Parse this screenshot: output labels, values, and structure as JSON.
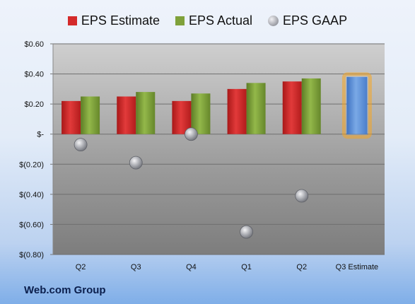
{
  "chart_data": {
    "type": "bar",
    "title": "",
    "xlabel": "",
    "ylabel": "",
    "categories": [
      "Q2",
      "Q3",
      "Q4",
      "Q1",
      "Q2",
      "Q3 Estimate"
    ],
    "ylim": [
      -0.8,
      0.6
    ],
    "yticks": [
      0.6,
      0.4,
      0.2,
      0,
      -0.2,
      -0.4,
      -0.6,
      -0.8
    ],
    "ytick_labels": [
      "$0.60",
      "$0.40",
      "$0.20",
      "$-",
      "$(0.20)",
      "$(0.40)",
      "$(0.60)",
      "$(0.80)"
    ],
    "grid": true,
    "legend_position": "top-center",
    "series": [
      {
        "name": "EPS Estimate",
        "kind": "bar",
        "color": "#d42a2a",
        "values": [
          0.22,
          0.25,
          0.22,
          0.3,
          0.35,
          null
        ]
      },
      {
        "name": "EPS Actual",
        "kind": "bar",
        "color": "#7fa13a",
        "values": [
          0.25,
          0.28,
          0.27,
          0.34,
          0.37,
          null
        ]
      },
      {
        "name": "EPS GAAP",
        "kind": "marker",
        "color": "#a8aab0",
        "values": [
          -0.07,
          -0.19,
          0.0,
          -0.65,
          -0.41,
          null
        ]
      },
      {
        "name": "Q3 Estimate",
        "kind": "highlight-bar",
        "color": "#5b8fd6",
        "glow": "#f5a623",
        "values": [
          null,
          null,
          null,
          null,
          null,
          0.38
        ]
      }
    ]
  },
  "legend": [
    {
      "label": "EPS Estimate",
      "color": "#d42a2a",
      "shape": "square"
    },
    {
      "label": "EPS Actual",
      "color": "#7fa13a",
      "shape": "square"
    },
    {
      "label": "EPS GAAP",
      "color": "#a8aab0",
      "shape": "circle"
    }
  ],
  "company": "Web.com Group"
}
